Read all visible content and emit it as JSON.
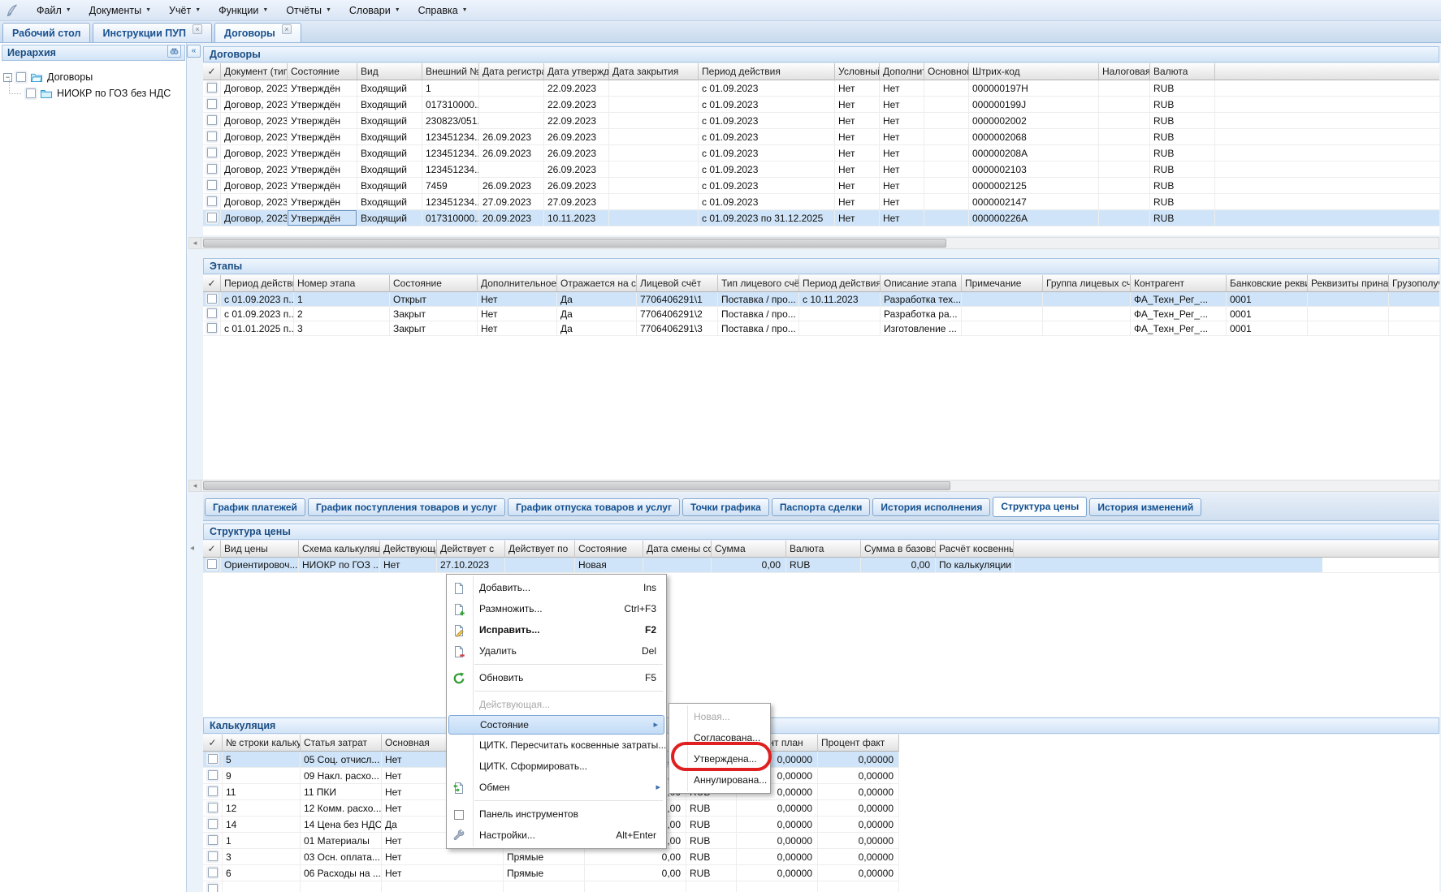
{
  "menubar": {
    "items": [
      "Файл",
      "Документы",
      "Учёт",
      "Функции",
      "Отчёты",
      "Словари",
      "Справка"
    ]
  },
  "window_tabs": [
    {
      "label": "Рабочий стол",
      "closable": false,
      "active": false
    },
    {
      "label": "Инструкции ПУП",
      "closable": true,
      "active": false
    },
    {
      "label": "Договоры",
      "closable": true,
      "active": true
    }
  ],
  "hierarchy": {
    "title": "Иерархия",
    "items": [
      {
        "label": "Договоры"
      },
      {
        "label": "НИОКР по ГОЗ без НДС"
      }
    ]
  },
  "contracts": {
    "title": "Договоры",
    "columns": [
      "✓",
      "Документ (тип, №",
      "Состояние",
      "Вид",
      "Внешний №",
      "Дата регистрации.",
      "Дата утверждения",
      "Дата закрытия",
      "Период действия",
      "Условный договор",
      "Дополнительное с",
      "Основной договор",
      "Штрих-код",
      "Налоговая группа.",
      "Валюта"
    ],
    "rows": [
      [
        "",
        "Договор, 2023/...",
        "Утверждён",
        "Входящий",
        "1",
        "",
        "22.09.2023",
        "",
        "с 01.09.2023",
        "Нет",
        "Нет",
        "",
        "000000197H",
        "",
        "RUB"
      ],
      [
        "",
        "Договор, 2023/...",
        "Утверждён",
        "Входящий",
        "017310000...",
        "",
        "22.09.2023",
        "",
        "с 01.09.2023",
        "Нет",
        "Нет",
        "",
        "000000199J",
        "",
        "RUB"
      ],
      [
        "",
        "Договор, 2023/...",
        "Утверждён",
        "Входящий",
        "230823/051...",
        "",
        "22.09.2023",
        "",
        "с 01.09.2023",
        "Нет",
        "Нет",
        "",
        "0000002002",
        "",
        "RUB"
      ],
      [
        "",
        "Договор, 2023/...",
        "Утверждён",
        "Входящий",
        "123451234...",
        "26.09.2023",
        "26.09.2023",
        "",
        "с 01.09.2023",
        "Нет",
        "Нет",
        "",
        "0000002068",
        "",
        "RUB"
      ],
      [
        "",
        "Договор, 2023/...",
        "Утверждён",
        "Входящий",
        "123451234...",
        "26.09.2023",
        "26.09.2023",
        "",
        "с 01.09.2023",
        "Нет",
        "Нет",
        "",
        "000000208A",
        "",
        "RUB"
      ],
      [
        "",
        "Договор, 2023/...",
        "Утверждён",
        "Входящий",
        "123451234...",
        "",
        "26.09.2023",
        "",
        "с 01.09.2023",
        "Нет",
        "Нет",
        "",
        "0000002103",
        "",
        "RUB"
      ],
      [
        "",
        "Договор, 2023/...",
        "Утверждён",
        "Входящий",
        "7459",
        "26.09.2023",
        "26.09.2023",
        "",
        "с 01.09.2023",
        "Нет",
        "Нет",
        "",
        "0000002125",
        "",
        "RUB"
      ],
      [
        "",
        "Договор, 2023/...",
        "Утверждён",
        "Входящий",
        "123451234...",
        "27.09.2023",
        "27.09.2023",
        "",
        "с 01.09.2023",
        "Нет",
        "Нет",
        "",
        "0000002147",
        "",
        "RUB"
      ],
      [
        "",
        "Договор, 2023/...",
        "Утверждён",
        "Входящий",
        "017310000...",
        "20.09.2023",
        "10.11.2023",
        "",
        "с 01.09.2023 по 31.12.2025",
        "Нет",
        "Нет",
        "",
        "000000226A",
        "",
        "RUB"
      ]
    ]
  },
  "stages": {
    "title": "Этапы",
    "columns": [
      "✓",
      "Период действия..",
      "Номер этапа",
      "Состояние",
      "Дополнительное с",
      "Отражается на су",
      "Лицевой счёт",
      "Тип лицевого счёт",
      "Период действия л",
      "Описание этапа",
      "Примечание",
      "Группа лицевых сч",
      "Контрагент",
      "Банковские рекви:",
      "Реквизиты принад",
      "Грузополучатель"
    ],
    "rows": [
      [
        "",
        "с 01.09.2023 п...",
        "1",
        "Открыт",
        "Нет",
        "Да",
        "7706406291\\1",
        "Поставка / про...",
        "с 10.11.2023",
        "Разработка тех...",
        "",
        "",
        "ФА_Техн_Рег_...",
        "0001",
        "",
        ""
      ],
      [
        "",
        "с 01.09.2023 п...",
        "2",
        "Закрыт",
        "Нет",
        "Да",
        "7706406291\\2",
        "Поставка / про...",
        "",
        "Разработка ра...",
        "",
        "",
        "ФА_Техн_Рег_...",
        "0001",
        "",
        ""
      ],
      [
        "",
        "с 01.01.2025 п...",
        "3",
        "Закрыт",
        "Нет",
        "Да",
        "7706406291\\3",
        "Поставка / про...",
        "",
        "Изготовление ...",
        "",
        "",
        "ФА_Техн_Рег_...",
        "0001",
        "",
        ""
      ]
    ]
  },
  "subtabs": {
    "items": [
      "График платежей",
      "График поступления товаров и услуг",
      "График отпуска товаров и услуг",
      "Точки графика",
      "Паспорта сделки",
      "История исполнения",
      "Структура цены",
      "История изменений"
    ],
    "active": "Структура цены"
  },
  "price_structure": {
    "title": "Структура цены",
    "columns": [
      "✓",
      "Вид цены",
      "Схема калькуляци",
      "Действующая",
      "Действует с",
      "Действует по",
      "Состояние",
      "Дата смены состоя",
      "Сумма",
      "Валюта",
      "Сумма в базовой в",
      "Расчёт косвенных"
    ],
    "rows": [
      [
        "",
        "Ориентировоч...",
        "НИОКР по ГОЗ ...",
        "Нет",
        "27.10.2023",
        "",
        "Новая",
        "",
        "0,00",
        "RUB",
        "0,00",
        "По калькуляции"
      ]
    ]
  },
  "calculation": {
    "title": "Калькуляция",
    "columns": [
      "✓",
      "№ строки калькул",
      "Статья затрат",
      "Основная",
      "",
      "",
      "",
      "Процент план",
      "Процент факт"
    ],
    "rows": [
      [
        "",
        "5",
        "05 Соц. отчисл...",
        "Нет",
        "Прямые",
        "0,00",
        "RUB",
        "0,00000",
        "0,00000"
      ],
      [
        "",
        "9",
        "09 Накл. расхо...",
        "Нет",
        "Прямые",
        "0,00",
        "RUB",
        "0,00000",
        "0,00000"
      ],
      [
        "",
        "11",
        "11 ПКИ",
        "Нет",
        "Прямые",
        "0,00",
        "RUB",
        "0,00000",
        "0,00000"
      ],
      [
        "",
        "12",
        "12 Комм. расхо...",
        "Нет",
        "Прямые",
        "0,00",
        "RUB",
        "0,00000",
        "0,00000"
      ],
      [
        "",
        "14",
        "14 Цена без НДС",
        "Да",
        "Прямые",
        "0,00",
        "RUB",
        "0,00000",
        "0,00000"
      ],
      [
        "",
        "1",
        "01 Материалы",
        "Нет",
        "Прямые",
        "0,00",
        "RUB",
        "0,00000",
        "0,00000"
      ],
      [
        "",
        "3",
        "03 Осн. оплата...",
        "Нет",
        "Прямые",
        "0,00",
        "RUB",
        "0,00000",
        "0,00000"
      ],
      [
        "",
        "6",
        "06 Расходы на ...",
        "Нет",
        "Прямые",
        "0,00",
        "RUB",
        "0,00000",
        "0,00000"
      ],
      [
        "",
        "",
        "",
        "",
        "",
        "",
        "",
        "",
        ""
      ]
    ]
  },
  "context_menu": {
    "items": [
      {
        "icon": "new-document",
        "label": "Добавить...",
        "shortcut": "Ins"
      },
      {
        "icon": "copy-document",
        "label": "Размножить...",
        "shortcut": "Ctrl+F3"
      },
      {
        "icon": "edit-document",
        "label": "Исправить...",
        "shortcut": "F2",
        "bold": true
      },
      {
        "icon": "delete-document",
        "label": "Удалить",
        "shortcut": "Del"
      },
      {
        "separator": true
      },
      {
        "icon": "refresh",
        "label": "Обновить",
        "shortcut": "F5"
      },
      {
        "separator": true
      },
      {
        "label": "Действующая...",
        "disabled": true
      },
      {
        "label": "Состояние",
        "submenu": true,
        "highlighted": true
      },
      {
        "label": "ЦИТК. Пересчитать косвенные затраты..."
      },
      {
        "label": "ЦИТК. Сформировать..."
      },
      {
        "icon": "exchange",
        "label": "Обмен",
        "submenu": true
      },
      {
        "separator": true
      },
      {
        "icon": "checkbox",
        "label": "Панель инструментов"
      },
      {
        "icon": "wrench",
        "label": "Настройки...",
        "shortcut": "Alt+Enter"
      }
    ]
  },
  "state_submenu": {
    "items": [
      {
        "label": "Новая...",
        "disabled": true
      },
      {
        "label": "Согласована..."
      },
      {
        "label": "Утверждена...",
        "annotated": true
      },
      {
        "label": "Аннулирована..."
      }
    ]
  }
}
